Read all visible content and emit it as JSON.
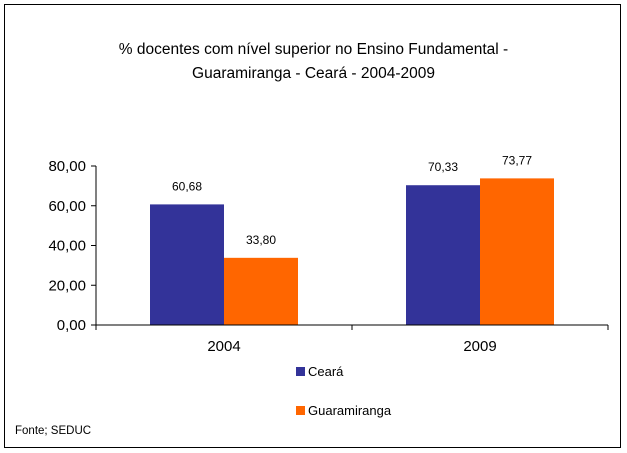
{
  "title_lines": [
    "% docentes com nível  superior no Ensino Fundamental  -",
    "Guaramiranga  -  Ceará - 2004-2009"
  ],
  "source_note": "Fonte; SEDUC",
  "chart_data": {
    "type": "bar",
    "title": "% docentes com nível  superior no Ensino Fundamental  - Guaramiranga  -  Ceará - 2004-2009",
    "categories": [
      "2004",
      "2009"
    ],
    "series": [
      {
        "name": "Ceará",
        "values": [
          60.68,
          70.33
        ],
        "labels": [
          "60,68",
          "70,33"
        ],
        "color": "#333399"
      },
      {
        "name": "Guaramiranga",
        "values": [
          33.8,
          73.77
        ],
        "labels": [
          "33,80",
          "73,77"
        ],
        "color": "#FF6600"
      }
    ],
    "yticks": [
      0,
      20,
      40,
      60,
      80
    ],
    "ytick_labels": [
      "0,00",
      "20,00",
      "40,00",
      "60,00",
      "80,00"
    ],
    "ylim": [
      0,
      80
    ],
    "xlabel": "",
    "ylabel": "",
    "grid": false,
    "legend_position": "bottom"
  }
}
